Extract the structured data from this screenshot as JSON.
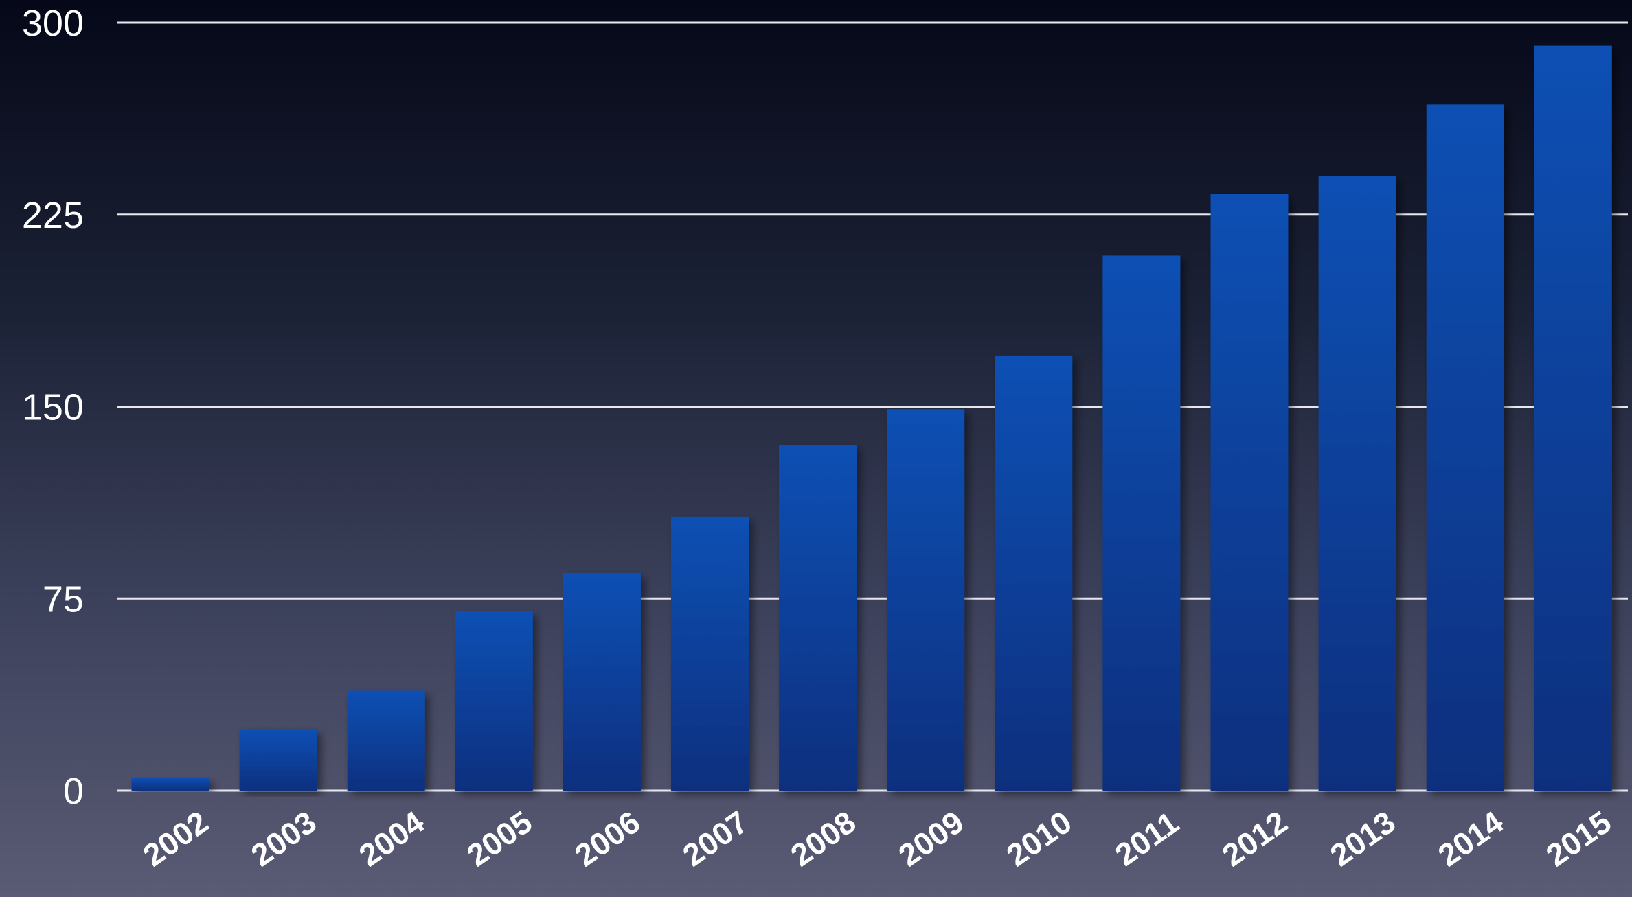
{
  "chart_data": {
    "type": "bar",
    "title": "",
    "xlabel": "",
    "ylabel": "",
    "categories": [
      "2002",
      "2003",
      "2004",
      "2005",
      "2006",
      "2007",
      "2008",
      "2009",
      "2010",
      "2011",
      "2012",
      "2013",
      "2014",
      "2015"
    ],
    "values": [
      5,
      24,
      39,
      70,
      85,
      107,
      135,
      149,
      170,
      209,
      233,
      240,
      268,
      291
    ],
    "ylim": [
      0,
      300
    ],
    "yticks": [
      "0",
      "75",
      "150",
      "225",
      "300"
    ],
    "grid": true,
    "legend": "none",
    "colors": {
      "bar_top": "#0a50b4",
      "bar_bottom": "#0c2f7e",
      "grid": "#e8e8ee",
      "text": "#ffffff"
    }
  }
}
